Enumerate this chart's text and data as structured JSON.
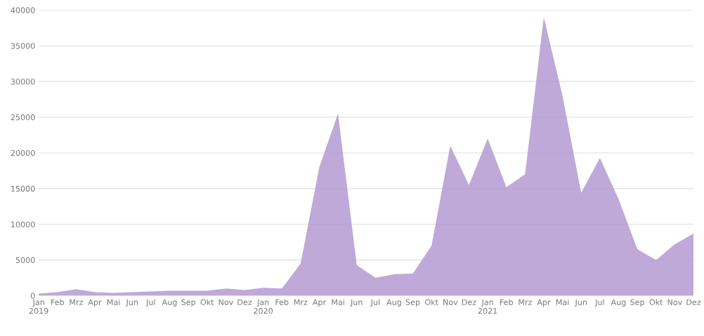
{
  "chart_data": {
    "type": "area",
    "categories": [
      "Jan\n2019",
      "Feb",
      "Mrz",
      "Apr",
      "Mai",
      "Jun",
      "Jul",
      "Aug",
      "Sep",
      "Okt",
      "Nov",
      "Dez",
      "Jan\n2020",
      "Feb",
      "Mrz",
      "Apr",
      "Mai",
      "Jun",
      "Jul",
      "Aug",
      "Sep",
      "Okt",
      "Nov",
      "Dez",
      "Jan\n2021",
      "Feb",
      "Mrz",
      "Apr",
      "Mai",
      "Jun",
      "Jul",
      "Aug",
      "Sep",
      "Okt",
      "Nov",
      "Dez"
    ],
    "series": [
      {
        "color": "#b39ad2",
        "values": [
          300,
          500,
          900,
          500,
          400,
          500,
          600,
          700,
          700,
          700,
          1000,
          800,
          1100,
          1000,
          4500,
          18000,
          25500,
          4300,
          2500,
          3000,
          3100,
          7000,
          21000,
          15500,
          22000,
          15200,
          17000,
          39000,
          28000,
          14400,
          19300,
          13500,
          6500,
          5000,
          7200,
          8700
        ]
      }
    ],
    "ylim": [
      0,
      40000
    ],
    "yticks": [
      0,
      5000,
      10000,
      15000,
      20000,
      25000,
      30000,
      35000,
      40000
    ],
    "grid": "y"
  }
}
